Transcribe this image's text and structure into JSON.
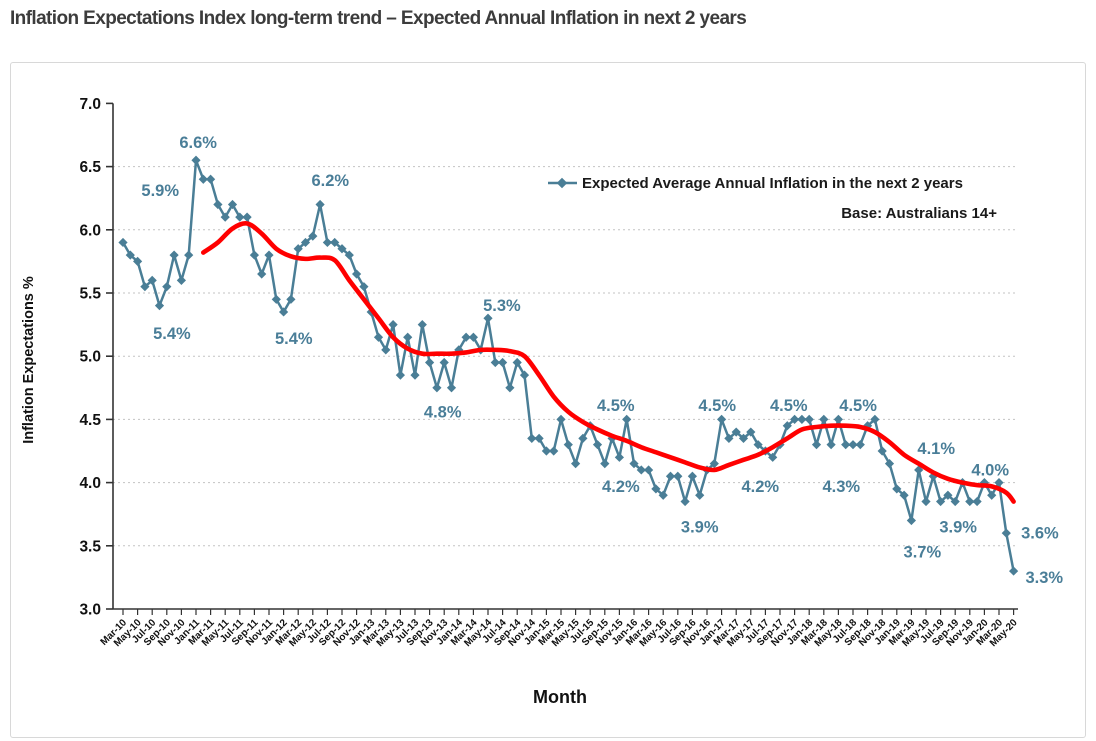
{
  "title": "Inflation Expectations Index long-term trend – Expected Annual Inflation in next 2 years",
  "legend": {
    "series_label": "Expected Average Annual Inflation in the next 2 years",
    "base_note": "Base: Australians 14+"
  },
  "colors": {
    "series": "#4A7E96",
    "trend": "#FF0000",
    "annotation": "#4A7E98",
    "grid": "#C3C3C3",
    "axis": "#333333",
    "title": "#3C3C3C",
    "panel_border": "#D8D8D8"
  },
  "chart_data": {
    "type": "line",
    "title": "Inflation Expectations Index long-term trend – Expected Annual Inflation in next 2 years",
    "xlabel": "Month",
    "ylabel": "Inflation Expectations %",
    "ylim": [
      3.0,
      7.0
    ],
    "ytick_step": 0.5,
    "grid": "dotted horizontal gridlines 3.5–6.5",
    "legend_position": "top-right inside plot",
    "points_monthly_from": "Mar-10",
    "points_monthly_to": "May-20",
    "x_tick_labels": [
      "Mar-10",
      "May-10",
      "Jul-10",
      "Sep-10",
      "Nov-10",
      "Jan-11",
      "Mar-11",
      "May-11",
      "Jul-11",
      "Sep-11",
      "Nov-11",
      "Jan-12",
      "Mar-12",
      "May-12",
      "Jul-12",
      "Sep-12",
      "Nov-12",
      "Jan-13",
      "Mar-13",
      "May-13",
      "Jul-13",
      "Sep-13",
      "Nov-13",
      "Jan-14",
      "Mar-14",
      "May-14",
      "Jul-14",
      "Sep-14",
      "Nov-14",
      "Jan-15",
      "Mar-15",
      "May-15",
      "Jul-15",
      "Sep-15",
      "Nov-15",
      "Jan-16",
      "Mar-16",
      "May-16",
      "Jul-16",
      "Sep-16",
      "Nov-16",
      "Jan-17",
      "Mar-17",
      "May-17",
      "Jul-17",
      "Sep-17",
      "Nov-17",
      "Jan-18",
      "Mar-18",
      "May-18",
      "Jul-18",
      "Sep-18",
      "Nov-18",
      "Jan-19",
      "Mar-19",
      "May-19",
      "Jul-19",
      "Sep-19",
      "Nov-19",
      "Jan-20",
      "Mar-20",
      "May-20"
    ],
    "series": [
      {
        "name": "Expected Average Annual Inflation in the next 2 years",
        "style": "line with diamond markers",
        "values": [
          5.9,
          5.8,
          5.75,
          5.55,
          5.6,
          5.4,
          5.55,
          5.8,
          5.6,
          5.8,
          6.55,
          6.4,
          6.4,
          6.2,
          6.1,
          6.2,
          6.1,
          6.1,
          5.8,
          5.65,
          5.8,
          5.45,
          5.35,
          5.45,
          5.85,
          5.9,
          5.95,
          6.2,
          5.9,
          5.9,
          5.85,
          5.8,
          5.65,
          5.55,
          5.35,
          5.15,
          5.05,
          5.25,
          4.85,
          5.15,
          4.85,
          5.25,
          4.95,
          4.75,
          4.95,
          4.75,
          5.05,
          5.15,
          5.15,
          5.05,
          5.3,
          4.95,
          4.95,
          4.75,
          4.95,
          4.85,
          4.35,
          4.35,
          4.25,
          4.25,
          4.5,
          4.3,
          4.15,
          4.35,
          4.45,
          4.3,
          4.15,
          4.35,
          4.2,
          4.5,
          4.15,
          4.1,
          4.1,
          3.95,
          3.9,
          4.05,
          4.05,
          3.85,
          4.05,
          3.9,
          4.1,
          4.15,
          4.5,
          4.35,
          4.4,
          4.35,
          4.4,
          4.3,
          4.25,
          4.2,
          4.3,
          4.45,
          4.5,
          4.5,
          4.5,
          4.3,
          4.5,
          4.3,
          4.5,
          4.3,
          4.3,
          4.3,
          4.45,
          4.5,
          4.25,
          4.15,
          3.95,
          3.9,
          3.7,
          4.1,
          3.85,
          4.05,
          3.85,
          3.9,
          3.85,
          4.0,
          3.85,
          3.85,
          4.0,
          3.9,
          4.0,
          3.6,
          3.3
        ]
      },
      {
        "name": "smoothed long-term trend",
        "style": "thick smooth red line",
        "points": [
          [
            11,
            5.82
          ],
          [
            13,
            5.9
          ],
          [
            15,
            6.01
          ],
          [
            17,
            6.05
          ],
          [
            19,
            5.97
          ],
          [
            21,
            5.85
          ],
          [
            23,
            5.79
          ],
          [
            25,
            5.77
          ],
          [
            27,
            5.78
          ],
          [
            29,
            5.76
          ],
          [
            31,
            5.6
          ],
          [
            33,
            5.45
          ],
          [
            35,
            5.3
          ],
          [
            37,
            5.15
          ],
          [
            39,
            5.06
          ],
          [
            41,
            5.02
          ],
          [
            43,
            5.02
          ],
          [
            45,
            5.02
          ],
          [
            47,
            5.03
          ],
          [
            49,
            5.05
          ],
          [
            51,
            5.05
          ],
          [
            53,
            5.04
          ],
          [
            55,
            5.0
          ],
          [
            57,
            4.85
          ],
          [
            59,
            4.68
          ],
          [
            61,
            4.56
          ],
          [
            63,
            4.48
          ],
          [
            65,
            4.42
          ],
          [
            67,
            4.37
          ],
          [
            69,
            4.33
          ],
          [
            71,
            4.28
          ],
          [
            73,
            4.24
          ],
          [
            75,
            4.2
          ],
          [
            77,
            4.16
          ],
          [
            79,
            4.12
          ],
          [
            81,
            4.1
          ],
          [
            83,
            4.14
          ],
          [
            85,
            4.18
          ],
          [
            87,
            4.22
          ],
          [
            89,
            4.28
          ],
          [
            91,
            4.35
          ],
          [
            93,
            4.42
          ],
          [
            95,
            4.44
          ],
          [
            97,
            4.45
          ],
          [
            99,
            4.45
          ],
          [
            101,
            4.44
          ],
          [
            103,
            4.4
          ],
          [
            105,
            4.32
          ],
          [
            107,
            4.22
          ],
          [
            109,
            4.15
          ],
          [
            111,
            4.08
          ],
          [
            113,
            4.03
          ],
          [
            115,
            4.0
          ],
          [
            117,
            3.98
          ],
          [
            119,
            3.97
          ],
          [
            121,
            3.92
          ],
          [
            122,
            3.85
          ]
        ]
      }
    ],
    "annotations": [
      {
        "text": "5.9%",
        "m": 5.1,
        "v": 6.31
      },
      {
        "text": "6.6%",
        "m": 10.3,
        "v": 6.69
      },
      {
        "text": "5.4%",
        "m": 6.7,
        "v": 5.18
      },
      {
        "text": "6.2%",
        "m": 28.4,
        "v": 6.39
      },
      {
        "text": "5.4%",
        "m": 23.4,
        "v": 5.14
      },
      {
        "text": "4.8%",
        "m": 43.8,
        "v": 4.56
      },
      {
        "text": "5.3%",
        "m": 51.9,
        "v": 5.4
      },
      {
        "text": "4.5%",
        "m": 67.5,
        "v": 4.61
      },
      {
        "text": "4.2%",
        "m": 68.2,
        "v": 3.97
      },
      {
        "text": "3.9%",
        "m": 79.0,
        "v": 3.65
      },
      {
        "text": "4.5%",
        "m": 81.4,
        "v": 4.61
      },
      {
        "text": "4.2%",
        "m": 87.3,
        "v": 3.97
      },
      {
        "text": "4.5%",
        "m": 91.2,
        "v": 4.61
      },
      {
        "text": "4.3%",
        "m": 98.4,
        "v": 3.97
      },
      {
        "text": "4.5%",
        "m": 100.7,
        "v": 4.61
      },
      {
        "text": "3.7%",
        "m": 109.5,
        "v": 3.45
      },
      {
        "text": "4.1%",
        "m": 111.4,
        "v": 4.27
      },
      {
        "text": "3.9%",
        "m": 114.4,
        "v": 3.65
      },
      {
        "text": "4.0%",
        "m": 118.8,
        "v": 4.1
      },
      {
        "text": "3.6%",
        "m": 125.6,
        "v": 3.6
      },
      {
        "text": "3.3%",
        "m": 126.2,
        "v": 3.25
      }
    ]
  }
}
